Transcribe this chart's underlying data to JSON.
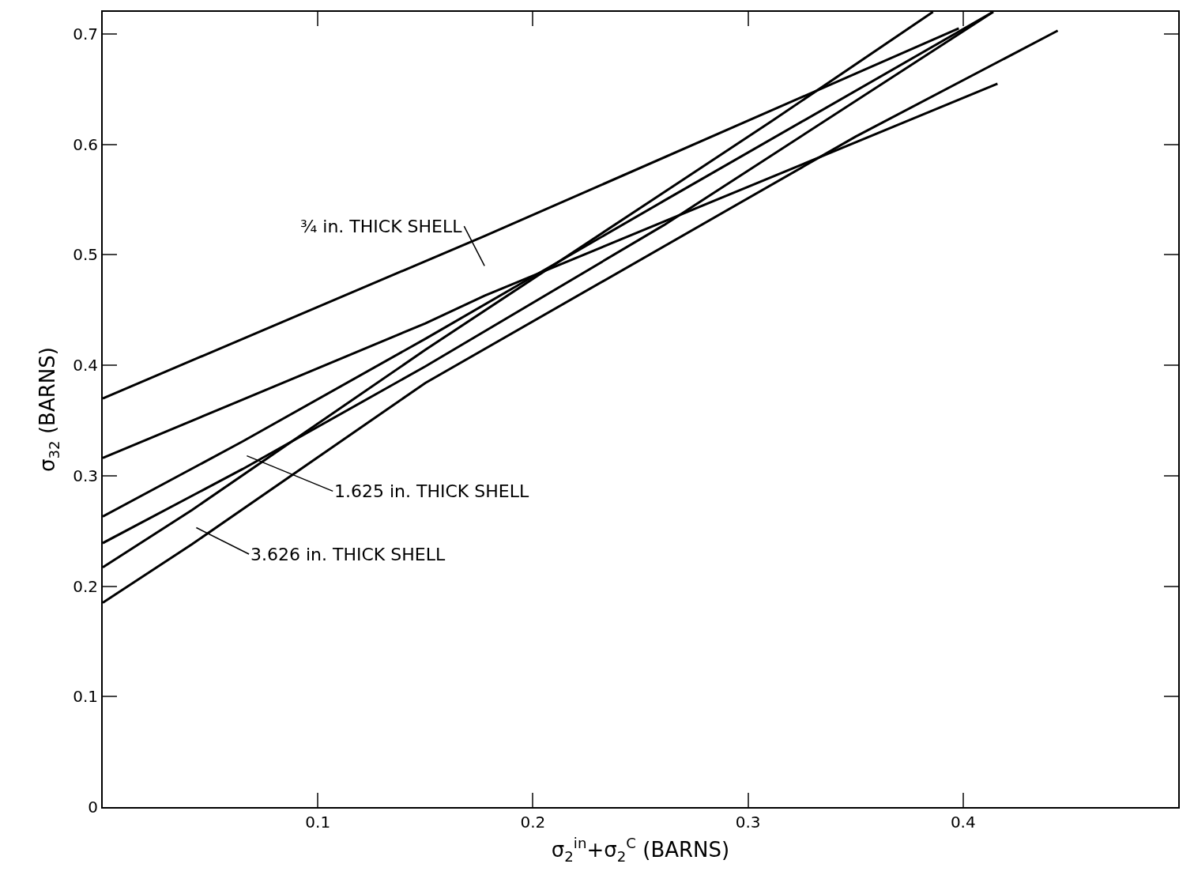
{
  "chart_data": {
    "type": "line",
    "xlabel": "σ$_{2}$$^{in}$+σ$_{2}$$^{C}$ (BARNS)",
    "ylabel": "σ$_{32}$ (BARNS)",
    "xlim": [
      0,
      0.5
    ],
    "ylim": [
      0,
      0.72
    ],
    "xticks": [
      0.1,
      0.2,
      0.3,
      0.4
    ],
    "yticks": [
      0,
      0.1,
      0.2,
      0.3,
      0.4,
      0.5,
      0.6,
      0.7
    ],
    "marker": "none",
    "line_style": "solid",
    "series": [
      {
        "color": "#000000",
        "x": [
          0,
          0.1775,
          0.398
        ],
        "values": [
          0.37,
          0.517,
          0.705
        ]
      },
      {
        "color": "#000000",
        "x": [
          0,
          0.15,
          0.1775,
          0.416
        ],
        "values": [
          0.316,
          0.438,
          0.463,
          0.655
        ]
      },
      {
        "color": "#000000",
        "x": [
          0,
          0.065,
          0.15,
          0.261,
          0.414
        ],
        "values": [
          0.263,
          0.331,
          0.424,
          0.549,
          0.72
        ]
      },
      {
        "color": "#000000",
        "x": [
          0,
          0.065,
          0.15,
          0.261,
          0.414
        ],
        "values": [
          0.239,
          0.306,
          0.399,
          0.527,
          0.72
        ]
      },
      {
        "color": "#000000",
        "x": [
          0,
          0.0415,
          0.15,
          0.311,
          0.386
        ],
        "values": [
          0.217,
          0.269,
          0.414,
          0.621,
          0.72
        ]
      },
      {
        "color": "#000000",
        "x": [
          0,
          0.0415,
          0.15,
          0.35,
          0.444
        ],
        "values": [
          0.185,
          0.238,
          0.384,
          0.607,
          0.703
        ]
      }
    ],
    "annotations": [
      "¾ in. THICK SHELL",
      "1.625 in. THICK SHELL",
      "3.626 in. THICK SHELL"
    ]
  }
}
